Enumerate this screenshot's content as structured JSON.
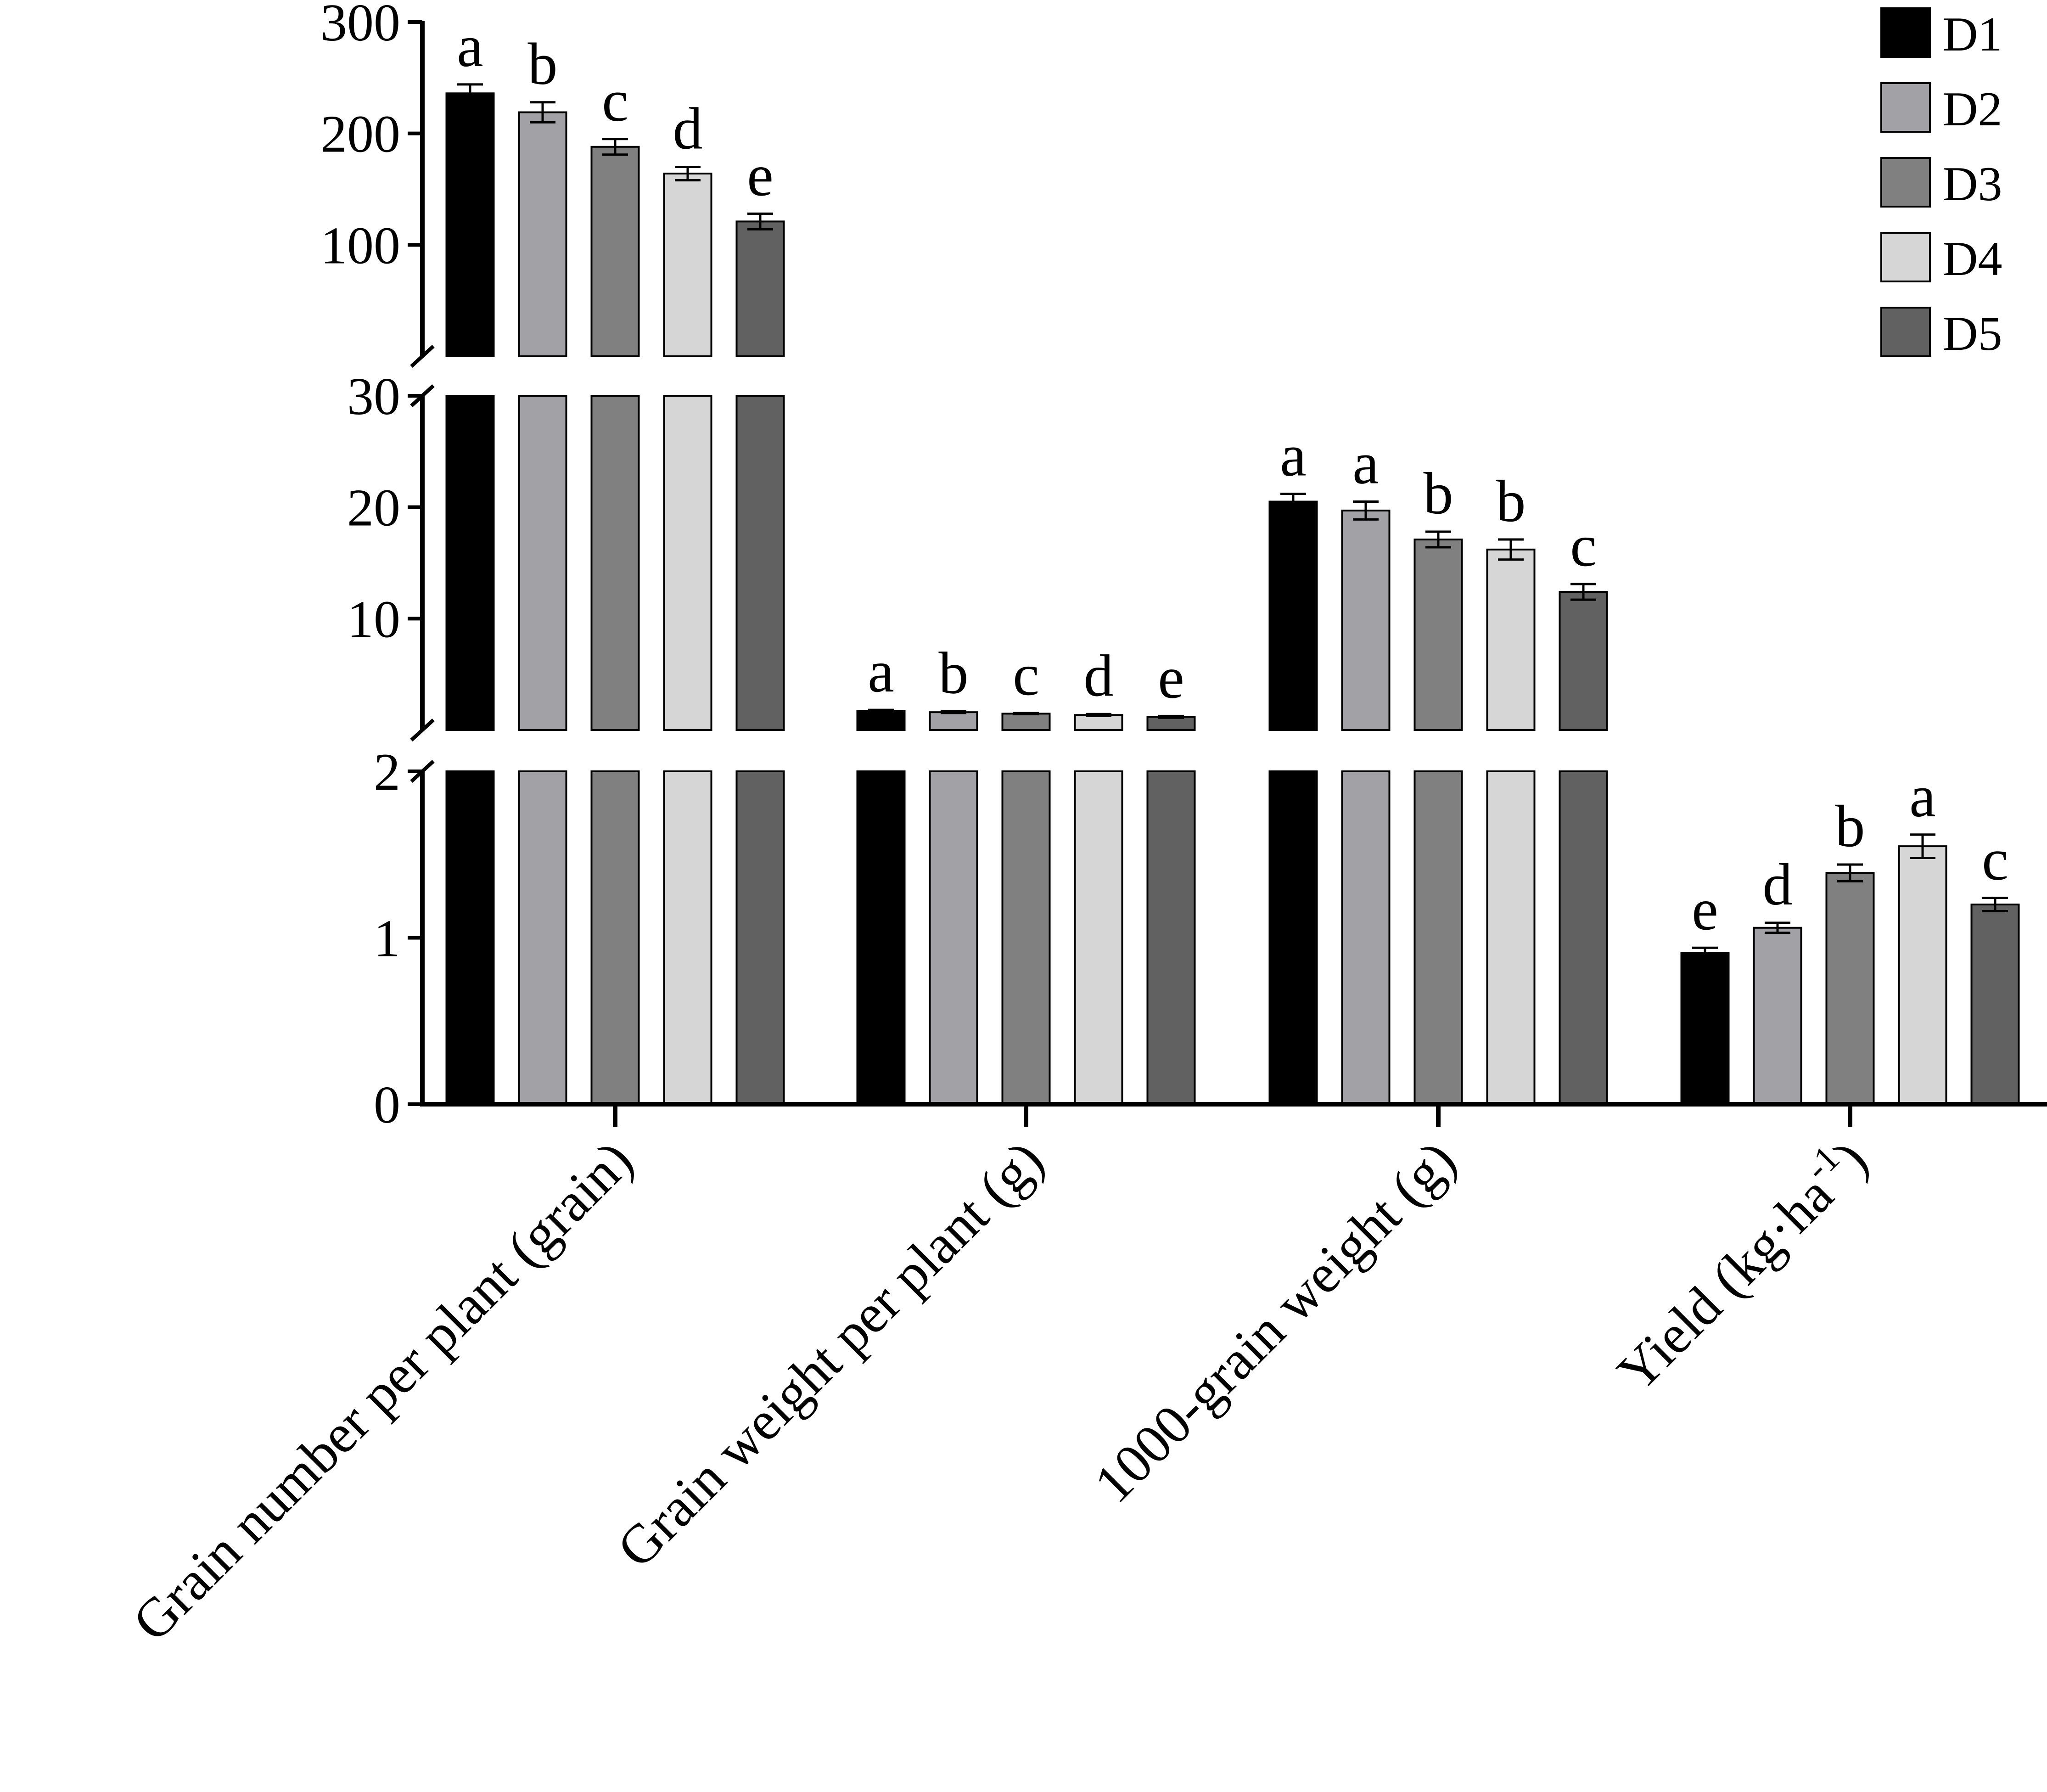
{
  "chart_data": {
    "type": "bar",
    "title": "",
    "xlabel": "",
    "ylabel": "",
    "grid": false,
    "legend_position": "top-right",
    "y_axis_broken": true,
    "y_segments": [
      {
        "range": [
          0,
          2
        ],
        "ticks": [
          0,
          1,
          2
        ],
        "tick_labels": [
          "0",
          "1",
          "2"
        ]
      },
      {
        "range": [
          0,
          30
        ],
        "ticks": [
          10,
          20,
          30
        ],
        "tick_labels": [
          "10",
          "20",
          "30"
        ]
      },
      {
        "range": [
          0,
          300
        ],
        "ticks": [
          100,
          200,
          300
        ],
        "tick_labels": [
          "100",
          "200",
          "300"
        ]
      }
    ],
    "categories": [
      "Grain number per plant (grain)",
      "Grain weight per plant (g)",
      "1000-grain weight (g)",
      "Yield (kg·ha"
    ],
    "category_superscripts": [
      "",
      "",
      "",
      "-1"
    ],
    "category_suffixes": [
      "",
      "",
      "",
      ")"
    ],
    "series": [
      {
        "name": "D1",
        "color": "#000000",
        "values": [
          236,
          1.73,
          20.5,
          0.91
        ],
        "errors": [
          8,
          0.08,
          0.7,
          0.03
        ],
        "letters": [
          "a",
          "a",
          "a",
          "e"
        ]
      },
      {
        "name": "D2",
        "color": "#a2a2a6",
        "values": [
          219,
          1.6,
          19.7,
          1.06
        ],
        "errors": [
          9,
          0.07,
          0.8,
          0.03
        ],
        "letters": [
          "b",
          "b",
          "a",
          "d"
        ]
      },
      {
        "name": "D3",
        "color": "#808080",
        "values": [
          188,
          1.47,
          17.1,
          1.39
        ],
        "errors": [
          7,
          0.05,
          0.7,
          0.05
        ],
        "letters": [
          "c",
          "c",
          "b",
          "b"
        ]
      },
      {
        "name": "D4",
        "color": "#d6d6d6",
        "values": [
          164,
          1.35,
          16.2,
          1.55
        ],
        "errors": [
          6,
          0.08,
          0.9,
          0.07
        ],
        "letters": [
          "d",
          "d",
          "b",
          "a"
        ]
      },
      {
        "name": "D5",
        "color": "#616161",
        "values": [
          121,
          1.18,
          12.4,
          1.2
        ],
        "errors": [
          7,
          0.08,
          0.7,
          0.04
        ],
        "letters": [
          "e",
          "e",
          "c",
          "c"
        ]
      }
    ],
    "bar_value_axis": [
      "top",
      "middle",
      "middle",
      "bottom"
    ]
  }
}
